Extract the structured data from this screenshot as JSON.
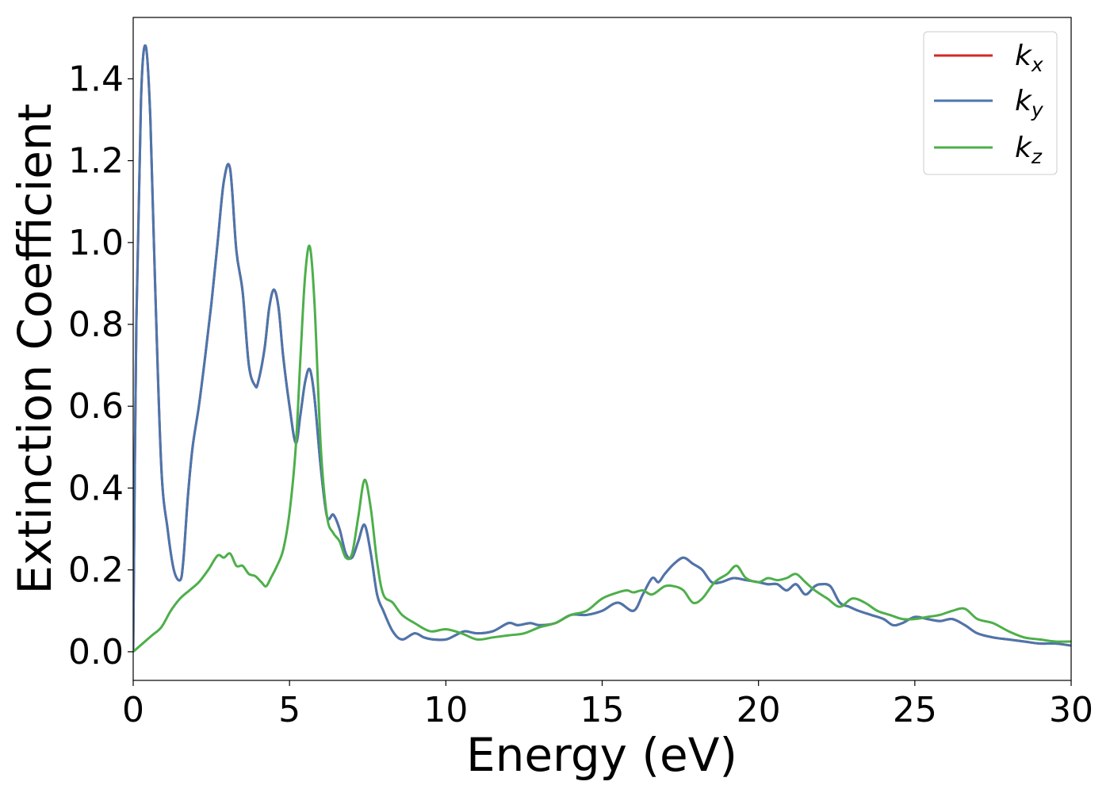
{
  "chart_data": {
    "type": "line",
    "title": "",
    "xlabel": "Energy (eV)",
    "ylabel": "Extinction Coefficient",
    "xlim": [
      0,
      30
    ],
    "ylim": [
      -0.07,
      1.55
    ],
    "xticks": [
      0,
      5,
      10,
      15,
      20,
      25,
      30
    ],
    "xtick_labels": [
      "0",
      "5",
      "10",
      "15",
      "20",
      "25",
      "30"
    ],
    "yticks": [
      0.0,
      0.2,
      0.4,
      0.6,
      0.8,
      1.0,
      1.2,
      1.4
    ],
    "ytick_labels": [
      "0.0",
      "0.2",
      "0.4",
      "0.6",
      "0.8",
      "1.0",
      "1.2",
      "1.4"
    ],
    "grid": false,
    "legend": {
      "placement": "top-right",
      "entries": [
        {
          "base": "k",
          "sub": "x"
        },
        {
          "base": "k",
          "sub": "y"
        },
        {
          "base": "k",
          "sub": "z"
        }
      ]
    },
    "series": [
      {
        "name": "k_x",
        "color": "#d62728",
        "x": [
          0,
          0.1,
          0.25,
          0.4,
          0.55,
          0.7,
          0.9,
          1.1,
          1.3,
          1.5,
          1.6,
          1.75,
          1.9,
          2.1,
          2.3,
          2.5,
          2.7,
          2.9,
          3.1,
          3.3,
          3.5,
          3.7,
          3.9,
          4.0,
          4.2,
          4.35,
          4.5,
          4.65,
          4.8,
          5.0,
          5.2,
          5.35,
          5.5,
          5.65,
          5.8,
          6.0,
          6.2,
          6.4,
          6.6,
          6.8,
          7.0,
          7.2,
          7.4,
          7.6,
          7.8,
          8.0,
          8.3,
          8.6,
          9.0,
          9.3,
          9.6,
          10.0,
          10.3,
          10.6,
          11.0,
          11.5,
          12.0,
          12.3,
          12.7,
          13.0,
          13.5,
          14.0,
          14.5,
          15.0,
          15.5,
          16.0,
          16.3,
          16.6,
          16.8,
          17.0,
          17.3,
          17.6,
          17.9,
          18.2,
          18.5,
          18.8,
          19.2,
          19.6,
          20.0,
          20.3,
          20.6,
          20.9,
          21.2,
          21.5,
          21.8,
          22.0,
          22.3,
          22.6,
          22.9,
          23.2,
          23.6,
          24.0,
          24.3,
          24.6,
          25.0,
          25.4,
          25.8,
          26.2,
          26.6,
          27.0,
          27.5,
          28.0,
          28.5,
          29.0,
          29.5,
          30.0
        ],
        "values": [
          0.0,
          0.8,
          1.35,
          1.48,
          1.3,
          0.9,
          0.45,
          0.3,
          0.2,
          0.175,
          0.22,
          0.38,
          0.5,
          0.6,
          0.72,
          0.85,
          1.0,
          1.15,
          1.18,
          0.98,
          0.88,
          0.7,
          0.65,
          0.66,
          0.74,
          0.84,
          0.885,
          0.84,
          0.72,
          0.6,
          0.51,
          0.58,
          0.66,
          0.69,
          0.62,
          0.45,
          0.33,
          0.335,
          0.3,
          0.24,
          0.23,
          0.27,
          0.31,
          0.24,
          0.14,
          0.1,
          0.05,
          0.03,
          0.045,
          0.035,
          0.03,
          0.03,
          0.04,
          0.05,
          0.045,
          0.05,
          0.07,
          0.065,
          0.07,
          0.065,
          0.07,
          0.09,
          0.09,
          0.1,
          0.12,
          0.1,
          0.14,
          0.18,
          0.17,
          0.19,
          0.215,
          0.23,
          0.215,
          0.2,
          0.17,
          0.17,
          0.18,
          0.175,
          0.17,
          0.165,
          0.165,
          0.15,
          0.165,
          0.14,
          0.16,
          0.165,
          0.16,
          0.12,
          0.11,
          0.1,
          0.09,
          0.08,
          0.065,
          0.07,
          0.085,
          0.08,
          0.075,
          0.08,
          0.065,
          0.045,
          0.035,
          0.03,
          0.025,
          0.02,
          0.02,
          0.015
        ]
      },
      {
        "name": "k_y",
        "color": "#4a76ad",
        "x": [
          0,
          0.1,
          0.25,
          0.4,
          0.55,
          0.7,
          0.9,
          1.1,
          1.3,
          1.5,
          1.6,
          1.75,
          1.9,
          2.1,
          2.3,
          2.5,
          2.7,
          2.9,
          3.1,
          3.3,
          3.5,
          3.7,
          3.9,
          4.0,
          4.2,
          4.35,
          4.5,
          4.65,
          4.8,
          5.0,
          5.2,
          5.35,
          5.5,
          5.65,
          5.8,
          6.0,
          6.2,
          6.4,
          6.6,
          6.8,
          7.0,
          7.2,
          7.4,
          7.6,
          7.8,
          8.0,
          8.3,
          8.6,
          9.0,
          9.3,
          9.6,
          10.0,
          10.3,
          10.6,
          11.0,
          11.5,
          12.0,
          12.3,
          12.7,
          13.0,
          13.5,
          14.0,
          14.5,
          15.0,
          15.5,
          16.0,
          16.3,
          16.6,
          16.8,
          17.0,
          17.3,
          17.6,
          17.9,
          18.2,
          18.5,
          18.8,
          19.2,
          19.6,
          20.0,
          20.3,
          20.6,
          20.9,
          21.2,
          21.5,
          21.8,
          22.0,
          22.3,
          22.6,
          22.9,
          23.2,
          23.6,
          24.0,
          24.3,
          24.6,
          25.0,
          25.4,
          25.8,
          26.2,
          26.6,
          27.0,
          27.5,
          28.0,
          28.5,
          29.0,
          29.5,
          30.0
        ],
        "values": [
          0.0,
          0.8,
          1.35,
          1.48,
          1.3,
          0.9,
          0.45,
          0.3,
          0.2,
          0.175,
          0.22,
          0.38,
          0.5,
          0.6,
          0.72,
          0.85,
          1.0,
          1.15,
          1.18,
          0.98,
          0.88,
          0.7,
          0.65,
          0.66,
          0.74,
          0.84,
          0.885,
          0.84,
          0.72,
          0.6,
          0.51,
          0.58,
          0.66,
          0.69,
          0.62,
          0.45,
          0.33,
          0.335,
          0.3,
          0.24,
          0.23,
          0.27,
          0.31,
          0.24,
          0.14,
          0.1,
          0.05,
          0.03,
          0.045,
          0.035,
          0.03,
          0.03,
          0.04,
          0.05,
          0.045,
          0.05,
          0.07,
          0.065,
          0.07,
          0.065,
          0.07,
          0.09,
          0.09,
          0.1,
          0.12,
          0.1,
          0.14,
          0.18,
          0.17,
          0.19,
          0.215,
          0.23,
          0.215,
          0.2,
          0.17,
          0.17,
          0.18,
          0.175,
          0.17,
          0.165,
          0.165,
          0.15,
          0.165,
          0.14,
          0.16,
          0.165,
          0.16,
          0.12,
          0.11,
          0.1,
          0.09,
          0.08,
          0.065,
          0.07,
          0.085,
          0.08,
          0.075,
          0.08,
          0.065,
          0.045,
          0.035,
          0.03,
          0.025,
          0.02,
          0.02,
          0.015
        ]
      },
      {
        "name": "k_z",
        "color": "#4daf4a",
        "x": [
          0,
          0.3,
          0.6,
          0.9,
          1.2,
          1.5,
          1.8,
          2.1,
          2.4,
          2.7,
          2.9,
          3.1,
          3.3,
          3.5,
          3.7,
          3.9,
          4.1,
          4.25,
          4.4,
          4.6,
          4.8,
          5.0,
          5.2,
          5.35,
          5.5,
          5.65,
          5.8,
          6.0,
          6.2,
          6.4,
          6.6,
          6.8,
          7.0,
          7.2,
          7.4,
          7.6,
          7.8,
          8.0,
          8.3,
          8.6,
          9.0,
          9.5,
          10.0,
          10.5,
          11.0,
          11.5,
          12.0,
          12.5,
          13.0,
          13.5,
          14.0,
          14.5,
          15.0,
          15.5,
          15.8,
          16.0,
          16.3,
          16.6,
          17.0,
          17.3,
          17.6,
          17.9,
          18.2,
          18.6,
          19.0,
          19.3,
          19.6,
          20.0,
          20.3,
          20.6,
          20.9,
          21.2,
          21.5,
          21.8,
          22.2,
          22.6,
          23.0,
          23.4,
          23.8,
          24.2,
          24.6,
          25.0,
          25.4,
          25.8,
          26.2,
          26.6,
          27.0,
          27.5,
          28.0,
          28.5,
          29.0,
          29.5,
          30.0
        ],
        "values": [
          0.0,
          0.02,
          0.04,
          0.06,
          0.1,
          0.13,
          0.15,
          0.17,
          0.2,
          0.235,
          0.23,
          0.24,
          0.21,
          0.21,
          0.19,
          0.185,
          0.17,
          0.16,
          0.18,
          0.21,
          0.25,
          0.34,
          0.5,
          0.72,
          0.92,
          0.99,
          0.85,
          0.5,
          0.33,
          0.29,
          0.27,
          0.23,
          0.24,
          0.33,
          0.42,
          0.35,
          0.22,
          0.14,
          0.12,
          0.09,
          0.07,
          0.05,
          0.055,
          0.045,
          0.03,
          0.035,
          0.04,
          0.045,
          0.06,
          0.07,
          0.09,
          0.1,
          0.13,
          0.145,
          0.15,
          0.145,
          0.15,
          0.14,
          0.16,
          0.16,
          0.15,
          0.12,
          0.13,
          0.17,
          0.19,
          0.21,
          0.18,
          0.17,
          0.18,
          0.175,
          0.18,
          0.19,
          0.17,
          0.15,
          0.13,
          0.11,
          0.13,
          0.12,
          0.1,
          0.09,
          0.08,
          0.08,
          0.085,
          0.09,
          0.1,
          0.105,
          0.08,
          0.07,
          0.05,
          0.035,
          0.03,
          0.025,
          0.025
        ]
      }
    ]
  }
}
